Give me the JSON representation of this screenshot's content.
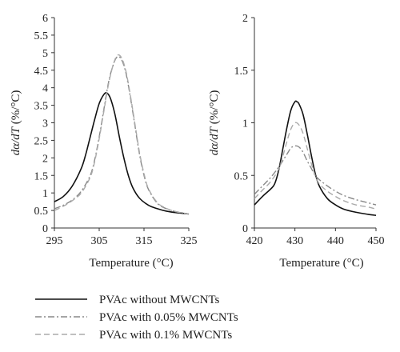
{
  "chart_data": [
    {
      "type": "line",
      "xlabel": "Temperature (°C)",
      "ylabel_parts": [
        "dα/dT",
        " (%/°C)"
      ],
      "xlim": [
        295,
        325
      ],
      "ylim": [
        0,
        6
      ],
      "xticks": [
        295,
        305,
        315,
        325
      ],
      "yticks": [
        0,
        0.5,
        1,
        1.5,
        2,
        2.5,
        3,
        3.5,
        4,
        4.5,
        5,
        5.5,
        6
      ],
      "ytick_labels": [
        "0",
        "0.5",
        "1",
        "1.5",
        "2",
        "2.5",
        "3",
        "3.5",
        "4",
        "4.5",
        "5",
        "5.5",
        "6"
      ],
      "grid": false,
      "series": [
        {
          "name": "PVAc without MWCNTs",
          "color": "#111111",
          "dash": "solid",
          "x": [
            295,
            297,
            299,
            301,
            302,
            303,
            304,
            305,
            306,
            306.7,
            307.5,
            308.5,
            309.5,
            310.5,
            311.5,
            312.5,
            314,
            316,
            318,
            320,
            322,
            325
          ],
          "y": [
            0.75,
            0.9,
            1.2,
            1.7,
            2.1,
            2.6,
            3.1,
            3.55,
            3.8,
            3.85,
            3.7,
            3.25,
            2.6,
            2.0,
            1.5,
            1.15,
            0.85,
            0.65,
            0.55,
            0.48,
            0.44,
            0.4
          ]
        },
        {
          "name": "PVAc with 0.05% MWCNTs",
          "color": "#888888",
          "dash": "dashdot",
          "x": [
            295,
            297,
            299,
            301,
            303,
            304,
            305,
            306,
            307,
            308,
            309,
            310,
            311,
            312,
            313,
            314,
            315,
            316,
            318,
            320,
            322,
            325
          ],
          "y": [
            0.55,
            0.65,
            0.8,
            1.05,
            1.5,
            1.95,
            2.6,
            3.35,
            4.1,
            4.6,
            4.88,
            4.8,
            4.4,
            3.7,
            2.9,
            2.1,
            1.5,
            1.1,
            0.7,
            0.55,
            0.47,
            0.4
          ]
        },
        {
          "name": "PVAc with 0.1% MWCNTs",
          "color": "#aaaaaa",
          "dash": "dash",
          "x": [
            295,
            297,
            299,
            301,
            303,
            304,
            305,
            306,
            307,
            308,
            309,
            310,
            311,
            312,
            313,
            314,
            315,
            316,
            318,
            320,
            322,
            325
          ],
          "y": [
            0.5,
            0.62,
            0.78,
            1.0,
            1.45,
            1.9,
            2.55,
            3.3,
            4.05,
            4.6,
            4.92,
            4.85,
            4.45,
            3.75,
            2.95,
            2.15,
            1.55,
            1.12,
            0.72,
            0.56,
            0.47,
            0.4
          ]
        }
      ]
    },
    {
      "type": "line",
      "xlabel": "Temperature (°C)",
      "ylabel_parts": [
        "dα/dT",
        " (%/°C)"
      ],
      "xlim": [
        420,
        450
      ],
      "ylim": [
        0,
        2
      ],
      "xticks": [
        420,
        430,
        440,
        450
      ],
      "yticks": [
        0,
        0.5,
        1,
        1.5,
        2
      ],
      "ytick_labels": [
        "0",
        "0.5",
        "1",
        "1.5",
        "2"
      ],
      "grid": false,
      "series": [
        {
          "name": "PVAc without MWCNTs",
          "color": "#111111",
          "dash": "solid",
          "x": [
            420,
            422,
            424,
            425,
            426,
            427,
            428,
            429,
            430,
            430.5,
            431,
            432,
            433,
            434,
            435,
            436,
            438,
            440,
            442,
            445,
            448,
            450
          ],
          "y": [
            0.22,
            0.3,
            0.37,
            0.42,
            0.55,
            0.75,
            0.95,
            1.12,
            1.2,
            1.2,
            1.18,
            1.08,
            0.9,
            0.7,
            0.52,
            0.4,
            0.28,
            0.22,
            0.18,
            0.15,
            0.13,
            0.12
          ]
        },
        {
          "name": "PVAc with 0.05% MWCNTs",
          "color": "#888888",
          "dash": "dashdot",
          "x": [
            420,
            422,
            424,
            426,
            428,
            429,
            430,
            431,
            432,
            433,
            434,
            435,
            436,
            438,
            440,
            442,
            445,
            448,
            450
          ],
          "y": [
            0.32,
            0.4,
            0.48,
            0.58,
            0.7,
            0.76,
            0.78,
            0.77,
            0.72,
            0.64,
            0.57,
            0.5,
            0.46,
            0.4,
            0.35,
            0.31,
            0.27,
            0.24,
            0.22
          ]
        },
        {
          "name": "PVAc with 0.1% MWCNTs",
          "color": "#aaaaaa",
          "dash": "dash",
          "x": [
            420,
            422,
            424,
            426,
            427,
            428,
            429,
            430,
            431,
            432,
            433,
            434,
            435,
            436,
            438,
            440,
            442,
            445,
            448,
            450
          ],
          "y": [
            0.28,
            0.36,
            0.44,
            0.56,
            0.68,
            0.82,
            0.94,
            1.0,
            0.98,
            0.9,
            0.76,
            0.62,
            0.5,
            0.42,
            0.35,
            0.3,
            0.26,
            0.22,
            0.2,
            0.18
          ]
        }
      ]
    }
  ],
  "legend": {
    "placement": "bottom-left",
    "entries": [
      {
        "label": "PVAc without MWCNTs",
        "color": "#111111",
        "dash": "solid"
      },
      {
        "label": "PVAc with 0.05% MWCNTs",
        "color": "#888888",
        "dash": "dashdot"
      },
      {
        "label": "PVAc with 0.1% MWCNTs",
        "color": "#aaaaaa",
        "dash": "dash"
      }
    ]
  }
}
